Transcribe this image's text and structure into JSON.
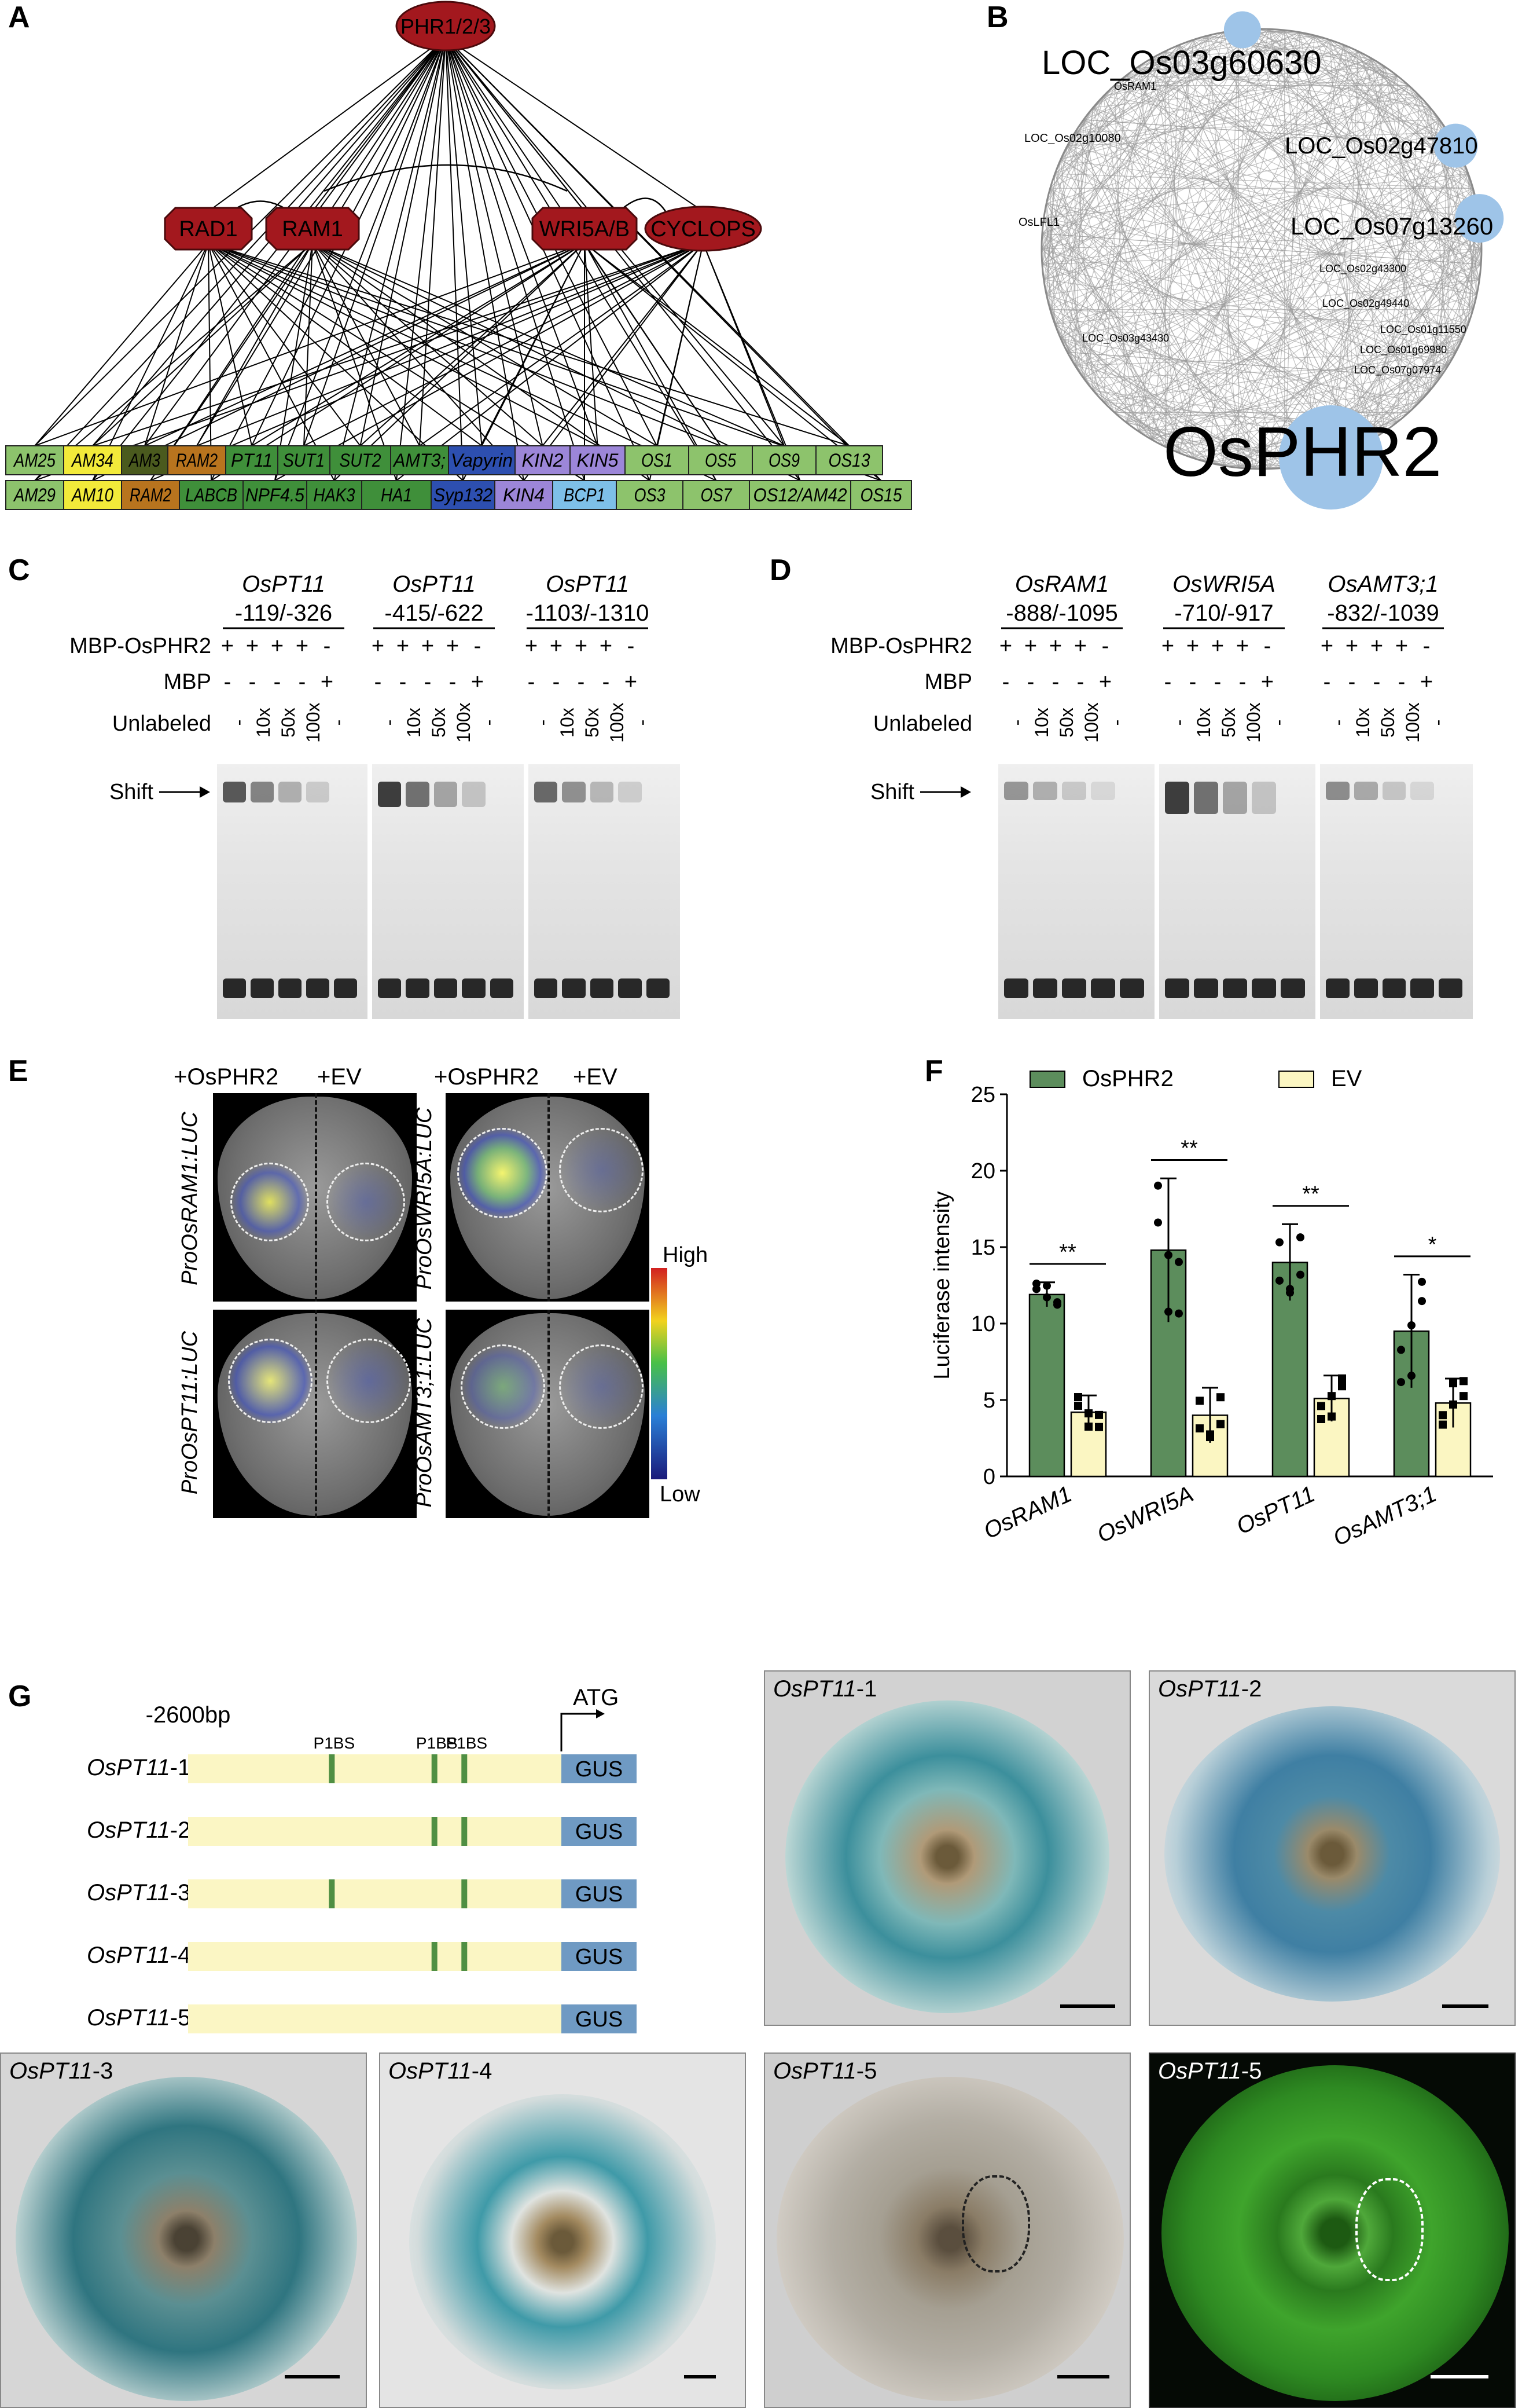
{
  "panels": {
    "A": {
      "letter": "A",
      "top_node": "PHR1/2/3",
      "mid_nodes": [
        "RAD1",
        "RAM1",
        "WRI5A/B",
        "CYCLOPS"
      ],
      "row1": [
        {
          "label": "AM25",
          "color": "#8dc36c"
        },
        {
          "label": "AM34",
          "color": "#f2ea3a"
        },
        {
          "label": "AM3",
          "color": "#4a5a1e"
        },
        {
          "label": "RAM2",
          "color": "#b8741e"
        },
        {
          "label": "PT11",
          "color": "#3f8f3a"
        },
        {
          "label": "SUT1",
          "color": "#3f8f3a"
        },
        {
          "label": "SUT2",
          "color": "#3f8f3a"
        },
        {
          "label": "AMT3;",
          "color": "#3f8f3a"
        },
        {
          "label": "Vapyrin",
          "color": "#2d4fb0"
        },
        {
          "label": "KIN2",
          "color": "#9c86d8"
        },
        {
          "label": "KIN5",
          "color": "#9c86d8"
        },
        {
          "label": "OS1",
          "color": "#8dc36c"
        },
        {
          "label": "OS5",
          "color": "#8dc36c"
        },
        {
          "label": "OS9",
          "color": "#8dc36c"
        },
        {
          "label": "OS13",
          "color": "#8dc36c"
        }
      ],
      "row2": [
        {
          "label": "AM29",
          "color": "#8dc36c"
        },
        {
          "label": "AM10",
          "color": "#f2ea3a"
        },
        {
          "label": "RAM2",
          "color": "#b8741e"
        },
        {
          "label": "LABCB",
          "color": "#3f8f3a"
        },
        {
          "label": "NPF4.5",
          "color": "#3f8f3a"
        },
        {
          "label": "HAK3",
          "color": "#3f8f3a"
        },
        {
          "label": "HA1",
          "color": "#3f8f3a"
        },
        {
          "label": "Syp132",
          "color": "#2d4fb0"
        },
        {
          "label": "KIN4",
          "color": "#9c86d8"
        },
        {
          "label": "BCP1",
          "color": "#7ec0e8"
        },
        {
          "label": "OS3",
          "color": "#8dc36c"
        },
        {
          "label": "OS7",
          "color": "#8dc36c"
        },
        {
          "label": "OS12/AM42",
          "color": "#8dc36c"
        },
        {
          "label": "OS15",
          "color": "#8dc36c"
        }
      ]
    },
    "B": {
      "letter": "B",
      "hub_large": "OsPHR2",
      "hubs": [
        "LOC_Os03g60630",
        "LOC_Os02g47810",
        "LOC_Os07g13260"
      ],
      "small_labels": [
        "LOC_Os02g10080",
        "OsLFL1",
        "LOC_Os02g49440",
        "LOC_Os01g11550",
        "LOC_Os01g69980",
        "LOC_Os07g07974",
        "OsRAM1",
        "LOC_Os02g43300",
        "LOC_Os03g43430"
      ]
    },
    "C": {
      "letter": "C",
      "probes": [
        {
          "gene": "OsPT11",
          "range": "-119/-326"
        },
        {
          "gene": "OsPT11",
          "range": "-415/-622"
        },
        {
          "gene": "OsPT11",
          "range": "-1103/-1310"
        }
      ],
      "row_labels": [
        "MBP-OsPHR2",
        "MBP",
        "Unlabeled"
      ],
      "mbp_phr2": [
        "+",
        "+",
        "+",
        "+",
        "-"
      ],
      "mbp": [
        "-",
        "-",
        "-",
        "-",
        "+"
      ],
      "unlabeled": [
        "-",
        "10x",
        "50x",
        "100x",
        "-"
      ],
      "shift_label": "Shift"
    },
    "D": {
      "letter": "D",
      "probes": [
        {
          "gene": "OsRAM1",
          "range": "-888/-1095"
        },
        {
          "gene": "OsWRI5A",
          "range": "-710/-917"
        },
        {
          "gene": "OsAMT3;1",
          "range": "-832/-1039"
        }
      ],
      "row_labels": [
        "MBP-OsPHR2",
        "MBP",
        "Unlabeled"
      ],
      "shift_label": "Shift"
    },
    "E": {
      "letter": "E",
      "treatments": [
        "+OsPHR2",
        "+EV",
        "+OsPHR2",
        "+EV"
      ],
      "constructs": [
        "ProOsRAM1:LUC",
        "ProOsWRI5A:LUC",
        "ProOsPT11:LUC",
        "ProOsAMT3;1:LUC"
      ],
      "scale_high": "High",
      "scale_low": "Low"
    },
    "F": {
      "letter": "F",
      "chart_data": {
        "type": "bar",
        "categories": [
          "OsRAM1",
          "OsWRI5A",
          "OsPT11",
          "OsAMT3;1"
        ],
        "series": [
          {
            "name": "OsPHR2",
            "values": [
              11.9,
              14.8,
              14.0,
              9.5
            ],
            "err": [
              0.8,
              4.7,
              2.5,
              3.7
            ],
            "color": "#5c8d5c"
          },
          {
            "name": "EV",
            "values": [
              4.2,
              4.0,
              5.1,
              4.8
            ],
            "err": [
              1.1,
              1.8,
              1.5,
              1.6
            ],
            "color": "#fbf6c2"
          }
        ],
        "significance": [
          "**",
          "**",
          "**",
          "*"
        ],
        "ylabel": "Luciferase intensity",
        "ylim": [
          0,
          25
        ],
        "yticks": [
          0,
          5,
          10,
          15,
          20,
          25
        ]
      }
    },
    "G": {
      "letter": "G",
      "start_label": "-2600bp",
      "atg_label": "ATG",
      "p1bs_label": "P1BS",
      "reporter": "GUS",
      "constructs": [
        {
          "gene": "OsPT11",
          "suffix": "-1",
          "p1bs": [
            0.385,
            0.66,
            0.74
          ]
        },
        {
          "gene": "OsPT11",
          "suffix": "-2",
          "p1bs": [
            0.66,
            0.74
          ]
        },
        {
          "gene": "OsPT11",
          "suffix": "-3",
          "p1bs": [
            0.385,
            0.74
          ]
        },
        {
          "gene": "OsPT11",
          "suffix": "-4",
          "p1bs": [
            0.66,
            0.74
          ]
        },
        {
          "gene": "OsPT11",
          "suffix": "-5",
          "p1bs": []
        }
      ],
      "photos": [
        {
          "gene": "OsPT11",
          "suffix": "-1"
        },
        {
          "gene": "OsPT11",
          "suffix": "-2"
        },
        {
          "gene": "OsPT11",
          "suffix": "-3"
        },
        {
          "gene": "OsPT11",
          "suffix": "-4"
        },
        {
          "gene": "OsPT11",
          "suffix": "-5"
        },
        {
          "gene": "OsPT11",
          "suffix": "-5"
        }
      ]
    }
  }
}
